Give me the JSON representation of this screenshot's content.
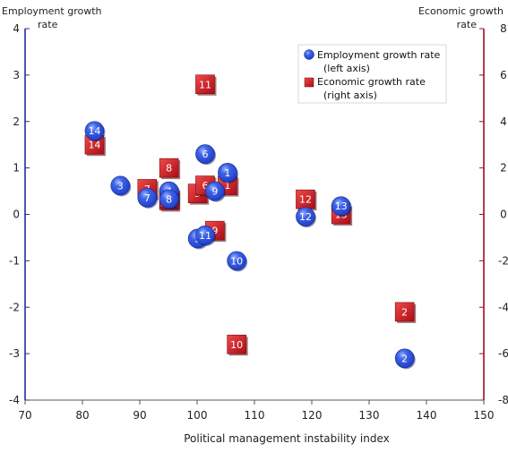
{
  "chart_data": {
    "type": "scatter",
    "xlabel": "Political management instability index",
    "ylabel_left": [
      "Employment growth",
      "rate"
    ],
    "ylabel_right": [
      "Economic growth",
      "rate"
    ],
    "xlim": [
      70,
      150
    ],
    "ylim_left": [
      -4,
      4
    ],
    "ylim_right": [
      -8,
      8
    ],
    "x_ticks": [
      70,
      80,
      90,
      100,
      110,
      120,
      130,
      140,
      150
    ],
    "y_left_ticks": [
      4,
      3,
      2,
      1,
      0,
      -1,
      -2,
      -3,
      -4
    ],
    "y_right_ticks": [
      8,
      6,
      4,
      2,
      0,
      -2,
      -4,
      -6,
      -8
    ],
    "grid": false,
    "legend_position": "top-right",
    "colors": {
      "employment": "#1f3fc8",
      "economic": "#c8141e",
      "left_axis": "#1f2fa0",
      "right_axis": "#9a1020"
    },
    "series": [
      {
        "name": "Employment growth rate\n(left axis)",
        "axis": "left",
        "marker": "circle",
        "points": [
          {
            "label": "1",
            "x": 105.3,
            "y": 0.9
          },
          {
            "label": "2",
            "x": 136.2,
            "y": -3.1
          },
          {
            "label": "3",
            "x": 86.6,
            "y": 0.62
          },
          {
            "label": "4",
            "x": 95.1,
            "y": 0.5
          },
          {
            "label": "5",
            "x": 100.1,
            "y": -0.52
          },
          {
            "label": "6",
            "x": 101.4,
            "y": 1.3
          },
          {
            "label": "7",
            "x": 91.3,
            "y": 0.36
          },
          {
            "label": "8",
            "x": 95.1,
            "y": 0.33
          },
          {
            "label": "9",
            "x": 103.1,
            "y": 0.5
          },
          {
            "label": "10",
            "x": 106.9,
            "y": -1.0
          },
          {
            "label": "11",
            "x": 101.4,
            "y": -0.45
          },
          {
            "label": "12",
            "x": 118.9,
            "y": -0.05
          },
          {
            "label": "13",
            "x": 125.1,
            "y": 0.18
          },
          {
            "label": "14",
            "x": 82.1,
            "y": 1.8
          }
        ]
      },
      {
        "name": "Economic growth rate\n(right axis)",
        "axis": "right",
        "marker": "square",
        "points": [
          {
            "label": "1",
            "x": 105.3,
            "y": 1.25
          },
          {
            "label": "2",
            "x": 136.2,
            "y": -4.2
          },
          {
            "label": "3",
            "x": 95.1,
            "y": 0.6
          },
          {
            "label": "4",
            "x": 95.1,
            "y": 0.7
          },
          {
            "label": "5",
            "x": 100.1,
            "y": 0.9
          },
          {
            "label": "6",
            "x": 101.4,
            "y": 1.25
          },
          {
            "label": "7",
            "x": 91.3,
            "y": 1.1
          },
          {
            "label": "8",
            "x": 95.1,
            "y": 2.0
          },
          {
            "label": "9",
            "x": 103.1,
            "y": -0.7
          },
          {
            "label": "10",
            "x": 106.9,
            "y": -5.6
          },
          {
            "label": "11",
            "x": 101.4,
            "y": 5.6
          },
          {
            "label": "12",
            "x": 118.9,
            "y": 0.65
          },
          {
            "label": "13",
            "x": 125.1,
            "y": 0.0
          },
          {
            "label": "14",
            "x": 82.1,
            "y": 3.0
          }
        ]
      }
    ]
  }
}
